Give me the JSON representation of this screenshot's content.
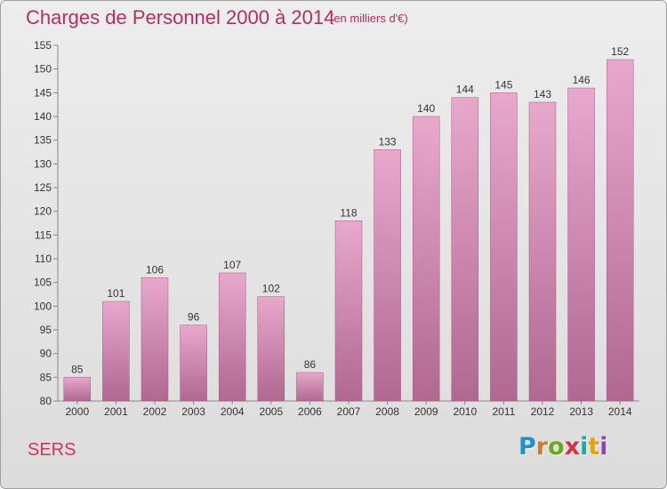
{
  "title": "Charges de Personnel 2000 à 2014",
  "subtitle": "(en milliers d'€)",
  "commune": "SERS",
  "logo": {
    "text": "Proxiti"
  },
  "colors": {
    "bar_top": "#e8a8cc",
    "bar_bottom": "#b06890",
    "title": "#b03060"
  },
  "chart_data": {
    "type": "bar",
    "title": "Charges de Personnel 2000 à 2014",
    "subtitle": "(en milliers d'€)",
    "xlabel": "",
    "ylabel": "",
    "ylim": [
      80,
      155
    ],
    "yticks": [
      80,
      85,
      90,
      95,
      100,
      105,
      110,
      115,
      120,
      125,
      130,
      135,
      140,
      145,
      150,
      155
    ],
    "grid": false,
    "categories": [
      "2000",
      "2001",
      "2002",
      "2003",
      "2004",
      "2005",
      "2006",
      "2007",
      "2008",
      "2009",
      "2010",
      "2011",
      "2012",
      "2013",
      "2014"
    ],
    "values": [
      85,
      101,
      106,
      96,
      107,
      102,
      86,
      118,
      133,
      140,
      144,
      145,
      143,
      146,
      152
    ],
    "data_labels": [
      "85",
      "101",
      "106",
      "96",
      "107",
      "102",
      "86",
      "118",
      "133",
      "140",
      "144",
      "145",
      "143",
      "146",
      "152"
    ]
  }
}
